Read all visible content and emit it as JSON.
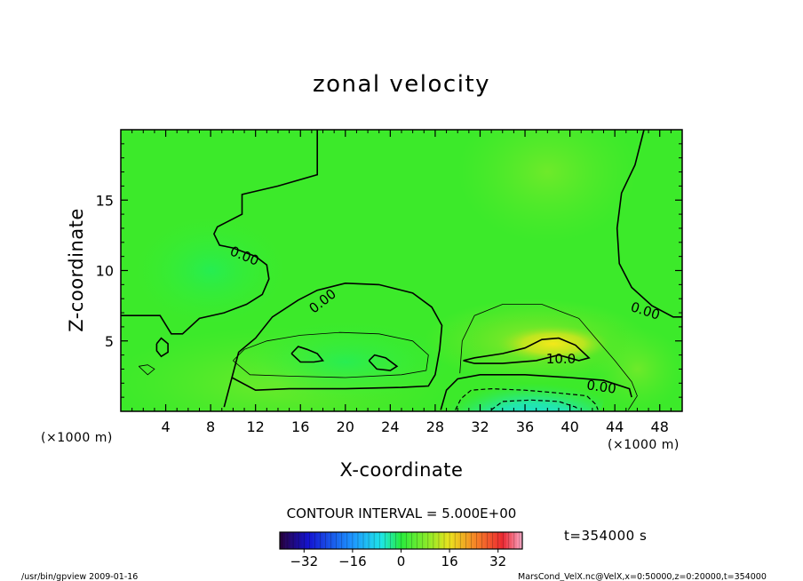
{
  "chart_data": {
    "type": "heatmap",
    "title": "zonal velocity",
    "xlabel": "X-coordinate",
    "ylabel": "Z-coordinate",
    "x_unit_left": "(×1000 m)",
    "x_unit_right": "(×1000 m)",
    "xlim": [
      0,
      50
    ],
    "ylim": [
      0,
      20
    ],
    "x_ticks": [
      "4",
      "8",
      "12",
      "16",
      "20",
      "24",
      "28",
      "32",
      "36",
      "40",
      "44",
      "48"
    ],
    "y_ticks": [
      "5",
      "10",
      "15"
    ],
    "contour_labels": [
      "0.00",
      "0.00",
      "0.00",
      "10.0",
      "0.00"
    ],
    "contour_interval_text": "CONTOUR INTERVAL = 5.000E+00",
    "time_text": "t=354000 s",
    "colorbar": {
      "min": -40,
      "max": 40,
      "tick_labels": [
        "−32",
        "−16",
        "0",
        "16",
        "32"
      ],
      "tick_values": [
        -32,
        -16,
        0,
        16,
        32
      ]
    },
    "colors": {
      "background_field": "#22ee22",
      "high": "#f0e020",
      "low": "#20d0f0"
    }
  },
  "footer": {
    "left": "/usr/bin/gpview   2009-01-16",
    "right": "MarsCond_VelX.nc@VelX,x=0:50000,z=0:20000,t=354000"
  }
}
